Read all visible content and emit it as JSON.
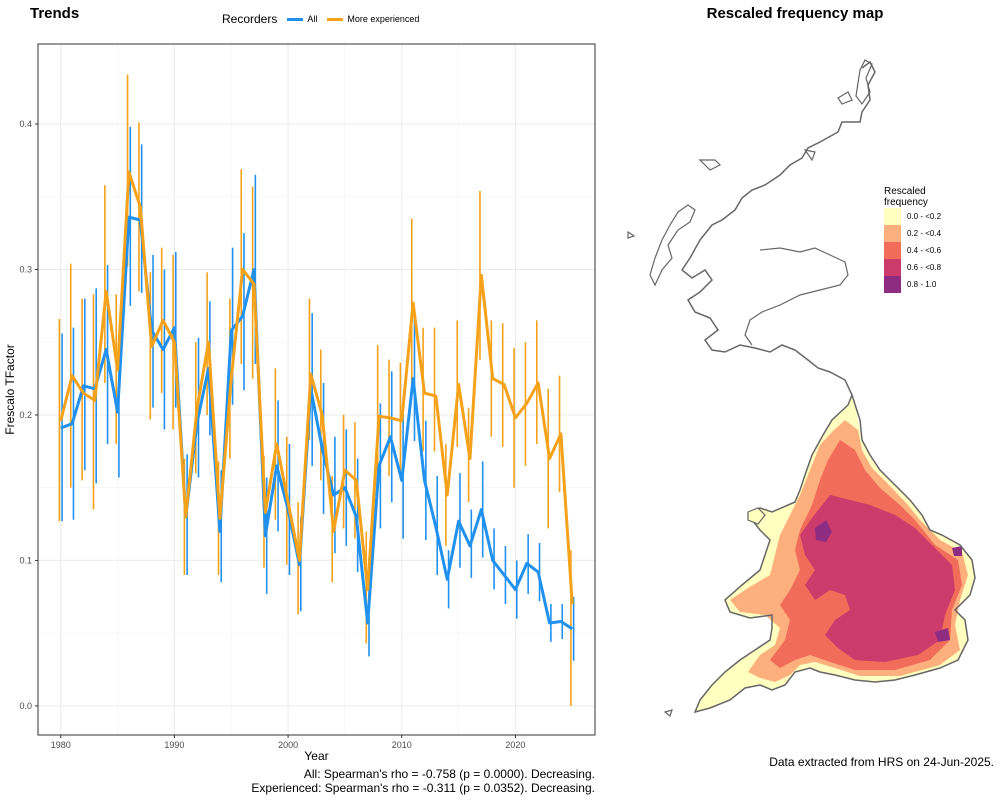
{
  "trends_panel": {
    "title": "Trends",
    "stats_lines": [
      "All: Spearman's rho = -0.758 (p = 0.0000). Decreasing.",
      "Experienced: Spearman's rho = -0.311 (p = 0.0352). Decreasing."
    ]
  },
  "map_panel": {
    "title": "Rescaled frequency map",
    "credit": "Data extracted from HRS on 24-Jun-2025.",
    "legend": {
      "title": "Rescaled frequency",
      "items": [
        {
          "label": "0.0 - <0.2",
          "color": "#FFFFC0"
        },
        {
          "label": "0.2 - <0.4",
          "color": "#FDB07E"
        },
        {
          "label": "0.4 - <0.6",
          "color": "#F26C5A"
        },
        {
          "label": "0.6 - <0.8",
          "color": "#CC3B6B"
        },
        {
          "label": "0.8 - 1.0",
          "color": "#8E2C82"
        }
      ]
    },
    "outline_color": "#666666"
  },
  "chart_data": {
    "type": "line",
    "xlabel": "Year",
    "ylabel": "Frescalo TFactor",
    "xlim": [
      1978,
      2027
    ],
    "ylim": [
      -0.02,
      0.455
    ],
    "x_ticks": [
      1980,
      1990,
      2000,
      2010,
      2020
    ],
    "y_ticks": [
      0.0,
      0.1,
      0.2,
      0.3,
      0.4
    ],
    "y_tick_labels": [
      "0.0",
      "0.1",
      "0.2",
      "0.3",
      "0.4"
    ],
    "grid": true,
    "legend_title": "Recorders",
    "legend_position": "top",
    "x": [
      1980,
      1981,
      1982,
      1983,
      1984,
      1985,
      1986,
      1987,
      1988,
      1989,
      1990,
      1991,
      1992,
      1993,
      1994,
      1995,
      1996,
      1997,
      1998,
      1999,
      2000,
      2001,
      2002,
      2003,
      2004,
      2005,
      2006,
      2007,
      2008,
      2009,
      2010,
      2011,
      2012,
      2013,
      2014,
      2015,
      2016,
      2017,
      2018,
      2019,
      2020,
      2021,
      2022,
      2023,
      2024,
      2025
    ],
    "series": [
      {
        "name": "All",
        "color": "#2191F0",
        "values": [
          0.191,
          0.194,
          0.22,
          0.218,
          0.245,
          0.202,
          0.336,
          0.334,
          0.258,
          0.245,
          0.26,
          0.13,
          0.195,
          0.232,
          0.12,
          0.258,
          0.268,
          0.3,
          0.117,
          0.165,
          0.135,
          0.097,
          0.218,
          0.177,
          0.145,
          0.15,
          0.13,
          0.057,
          0.165,
          0.185,
          0.155,
          0.225,
          0.155,
          0.123,
          0.087,
          0.127,
          0.11,
          0.135,
          0.1,
          0.09,
          0.08,
          0.098,
          0.092,
          0.057,
          0.058,
          0.053
        ],
        "lower": [
          0.127,
          0.128,
          0.162,
          0.153,
          0.18,
          0.157,
          0.275,
          0.284,
          0.205,
          0.19,
          0.205,
          0.09,
          0.157,
          0.186,
          0.085,
          0.207,
          0.217,
          0.235,
          0.077,
          0.12,
          0.09,
          0.065,
          0.165,
          0.132,
          0.105,
          0.11,
          0.092,
          0.034,
          0.122,
          0.14,
          0.115,
          0.182,
          0.114,
          0.09,
          0.067,
          0.095,
          0.088,
          0.102,
          0.08,
          0.07,
          0.06,
          0.077,
          0.072,
          0.044,
          0.046,
          0.031
        ],
        "upper": [
          0.256,
          0.26,
          0.28,
          0.287,
          0.303,
          0.247,
          0.398,
          0.386,
          0.31,
          0.3,
          0.312,
          0.173,
          0.253,
          0.278,
          0.162,
          0.315,
          0.325,
          0.365,
          0.157,
          0.21,
          0.18,
          0.13,
          0.27,
          0.222,
          0.185,
          0.19,
          0.17,
          0.08,
          0.208,
          0.23,
          0.2,
          0.268,
          0.196,
          0.158,
          0.107,
          0.16,
          0.135,
          0.168,
          0.122,
          0.11,
          0.1,
          0.118,
          0.112,
          0.07,
          0.07,
          0.075
        ]
      },
      {
        "name": "More experienced",
        "color": "#F5A21A",
        "values": [
          0.196,
          0.227,
          0.215,
          0.21,
          0.285,
          0.231,
          0.367,
          0.343,
          0.247,
          0.265,
          0.25,
          0.13,
          0.205,
          0.25,
          0.129,
          0.225,
          0.3,
          0.29,
          0.133,
          0.18,
          0.14,
          0.1,
          0.228,
          0.2,
          0.12,
          0.162,
          0.155,
          0.08,
          0.199,
          0.198,
          0.196,
          0.277,
          0.215,
          0.213,
          0.145,
          0.221,
          0.17,
          0.296,
          0.225,
          0.221,
          0.198,
          0.208,
          0.222,
          0.17,
          0.187,
          0.07
        ],
        "lower": [
          0.127,
          0.15,
          0.155,
          0.135,
          0.222,
          0.18,
          0.302,
          0.285,
          0.197,
          0.215,
          0.19,
          0.09,
          0.16,
          0.2,
          0.09,
          0.17,
          0.235,
          0.225,
          0.095,
          0.128,
          0.097,
          0.063,
          0.183,
          0.155,
          0.085,
          0.122,
          0.115,
          0.043,
          0.15,
          0.158,
          0.156,
          0.22,
          0.175,
          0.175,
          0.11,
          0.178,
          0.14,
          0.238,
          0.185,
          0.178,
          0.15,
          0.165,
          0.18,
          0.122,
          0.147,
          0.0
        ],
        "upper": [
          0.266,
          0.304,
          0.28,
          0.283,
          0.358,
          0.283,
          0.434,
          0.401,
          0.298,
          0.315,
          0.31,
          0.17,
          0.25,
          0.298,
          0.168,
          0.28,
          0.369,
          0.357,
          0.172,
          0.232,
          0.185,
          0.14,
          0.28,
          0.245,
          0.158,
          0.2,
          0.195,
          0.12,
          0.248,
          0.238,
          0.236,
          0.335,
          0.26,
          0.26,
          0.18,
          0.265,
          0.205,
          0.354,
          0.265,
          0.263,
          0.246,
          0.25,
          0.265,
          0.218,
          0.227,
          0.107
        ]
      }
    ]
  }
}
